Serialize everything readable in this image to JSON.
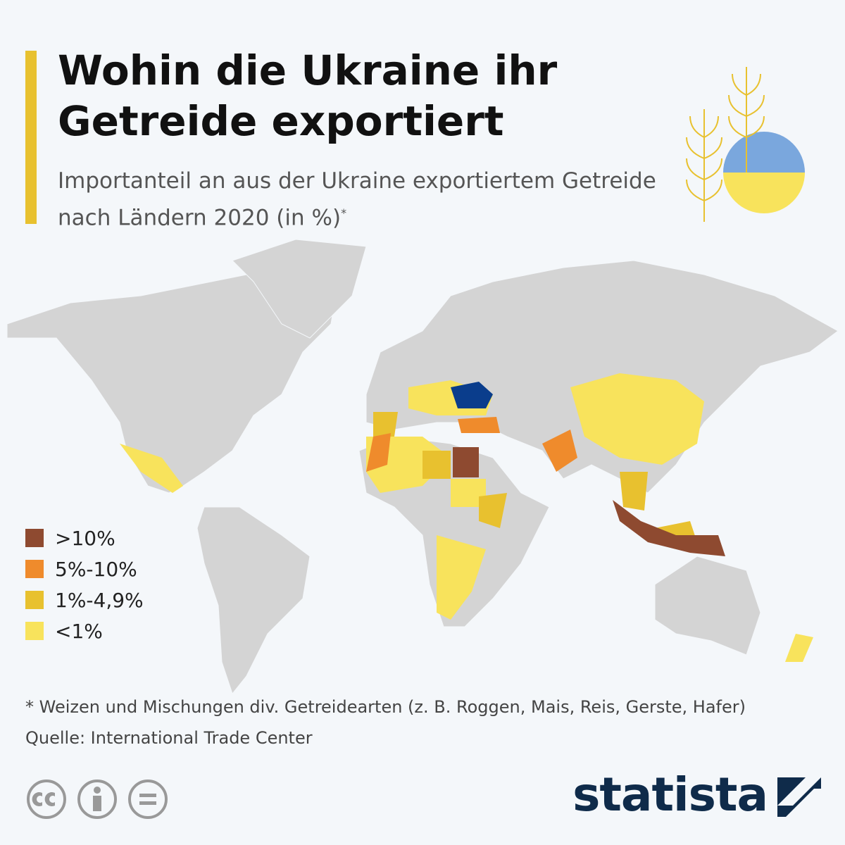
{
  "header": {
    "title": "Wohin die Ukraine ihr Getreide exportiert",
    "subtitle": "Importanteil an aus der Ukraine exportiertem Getreide nach Ländern 2020 (in %)",
    "subtitle_note": "*"
  },
  "legend": {
    "items": [
      {
        "label": ">10%",
        "color": "#8e4a30"
      },
      {
        "label": "5%-10%",
        "color": "#ef8b2c"
      },
      {
        "label": "1%-4,9%",
        "color": "#e8c12f"
      },
      {
        "label": "<1%",
        "color": "#f8e35c"
      }
    ]
  },
  "footer": {
    "note": "* Weizen und Mischungen div. Getreidearten (z. B. Roggen, Mais, Reis, Gerste, Hafer)",
    "source": "Quelle: International Trade Center",
    "brand": "statista"
  }
}
